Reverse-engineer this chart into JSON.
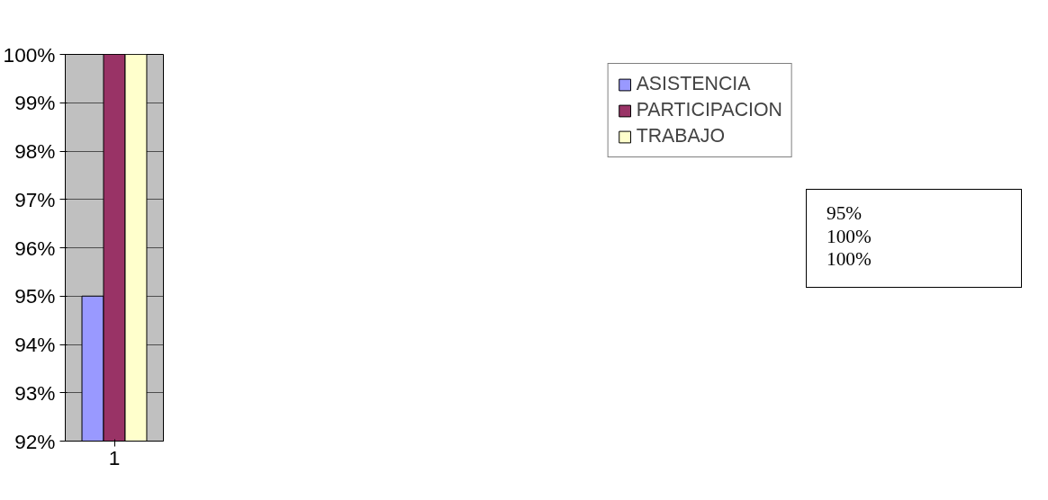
{
  "chart_data": {
    "type": "bar",
    "categories": [
      "1"
    ],
    "series": [
      {
        "name": "ASISTENCIA",
        "color": "#9999ff",
        "values": [
          95
        ]
      },
      {
        "name": "PARTICIPACION",
        "color": "#993366",
        "values": [
          100
        ]
      },
      {
        "name": "TRABAJO",
        "color": "#ffffcc",
        "values": [
          100
        ]
      }
    ],
    "ylim": [
      92,
      100
    ],
    "yticks": [
      {
        "value": 92,
        "label": "92%"
      },
      {
        "value": 93,
        "label": "93%"
      },
      {
        "value": 94,
        "label": "94%"
      },
      {
        "value": 95,
        "label": "95%"
      },
      {
        "value": 96,
        "label": "96%"
      },
      {
        "value": 97,
        "label": "97%"
      },
      {
        "value": 98,
        "label": "98%"
      },
      {
        "value": 99,
        "label": "99%"
      },
      {
        "value": 100,
        "label": "100%"
      }
    ],
    "grid": "y",
    "legend": "right",
    "annotations": [
      "95%",
      "100%",
      "100%"
    ]
  }
}
